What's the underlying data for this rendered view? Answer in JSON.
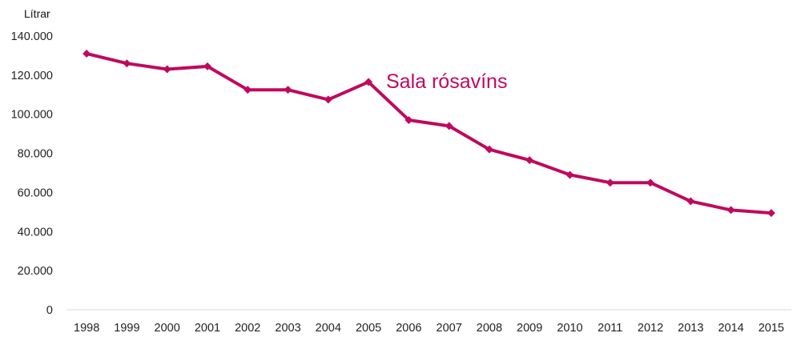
{
  "chart_data": {
    "type": "line",
    "title": "",
    "xlabel": "",
    "ylabel": "Lítrar",
    "ylim": [
      0,
      140000
    ],
    "y_ticks": [
      0,
      20000,
      40000,
      60000,
      80000,
      100000,
      120000,
      140000
    ],
    "y_tick_labels": [
      "0",
      "20.000",
      "40.000",
      "60.000",
      "80.000",
      "100.000",
      "120.000",
      "140.000"
    ],
    "grid": false,
    "categories": [
      "1998",
      "1999",
      "2000",
      "2001",
      "2002",
      "2003",
      "2004",
      "2005",
      "2006",
      "2007",
      "2008",
      "2009",
      "2010",
      "2011",
      "2012",
      "2013",
      "2014",
      "2015"
    ],
    "series": [
      {
        "name": "Sala rósavíns",
        "color": "#c0095e",
        "marker": "diamond",
        "values": [
          131000,
          126000,
          123000,
          124500,
          112500,
          112500,
          107500,
          116500,
          97000,
          94000,
          82000,
          76500,
          69000,
          65000,
          65000,
          55500,
          51000,
          49500
        ]
      }
    ]
  }
}
